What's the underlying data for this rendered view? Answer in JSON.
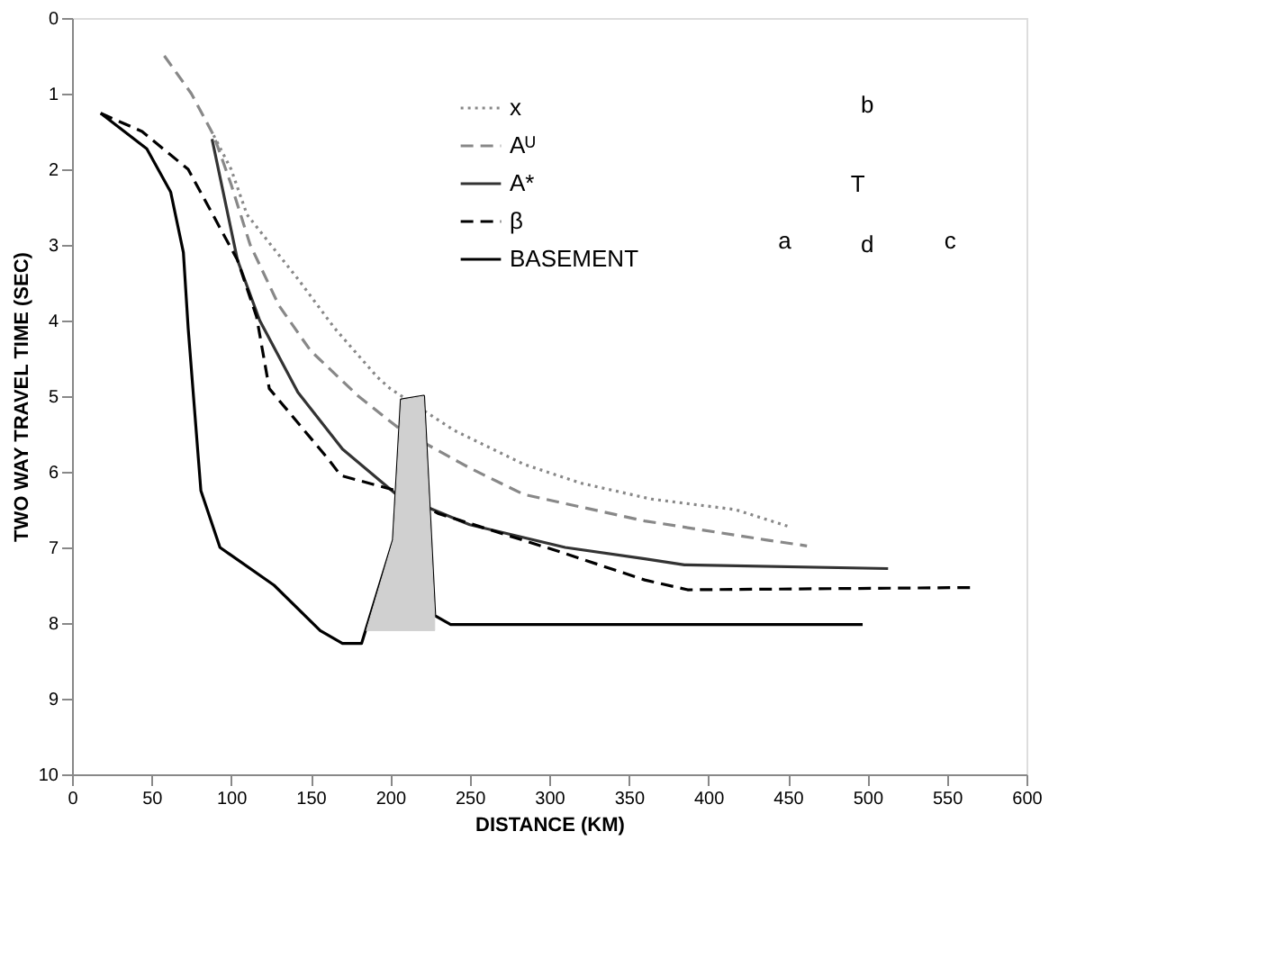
{
  "chart_data": {
    "type": "line",
    "xlabel": "DISTANCE (KM)",
    "ylabel": "TWO WAY TRAVEL TIME (SEC)",
    "xlim": [
      0,
      600
    ],
    "xticks": [
      0,
      50,
      100,
      150,
      200,
      250,
      300,
      350,
      400,
      450,
      500,
      550,
      600
    ],
    "ylim": [
      10,
      0
    ],
    "yticks": [
      0,
      1,
      2,
      3,
      4,
      5,
      6,
      7,
      8,
      9,
      10
    ],
    "grid": false,
    "legend": "top",
    "marker": "none",
    "annotations": [
      "a",
      "b",
      "c",
      "d",
      "T"
    ],
    "series": [
      {
        "name": "x",
        "color": "#888888",
        "line_style": "dotted",
        "x": [
          89,
          100,
          110,
          125,
          142,
          165,
          192,
          200,
          240,
          284,
          320,
          364,
          417,
          450
        ],
        "values": [
          1.55,
          2.0,
          2.6,
          3.0,
          3.45,
          4.1,
          4.75,
          4.9,
          5.45,
          5.9,
          6.15,
          6.36,
          6.5,
          6.72
        ]
      },
      {
        "name": "Aᵁ",
        "color": "#888888",
        "line_style": "dashed",
        "x": [
          58,
          75,
          89,
          100,
          112,
          130,
          150,
          180,
          207,
          250,
          284,
          360,
          436,
          462
        ],
        "values": [
          0.5,
          1.0,
          1.55,
          2.2,
          3.0,
          3.8,
          4.4,
          5.0,
          5.45,
          5.95,
          6.3,
          6.65,
          6.9,
          6.98
        ]
      },
      {
        "name": "A*",
        "color": "#333333",
        "line_style": "solid",
        "x": [
          88,
          95,
          104,
          118,
          142,
          170,
          204,
          250,
          310,
          360,
          385,
          513
        ],
        "values": [
          1.6,
          2.3,
          3.2,
          4.0,
          4.95,
          5.7,
          6.3,
          6.7,
          7.0,
          7.15,
          7.23,
          7.28
        ]
      },
      {
        "name": "β",
        "color": "#000000",
        "line_style": "dashed",
        "x": [
          18,
          44,
          73,
          104,
          116,
          124,
          161,
          169,
          204,
          230,
          307,
          360,
          387,
          566
        ],
        "values": [
          1.26,
          1.5,
          2.0,
          3.2,
          3.95,
          4.9,
          5.83,
          6.05,
          6.25,
          6.55,
          7.06,
          7.43,
          7.56,
          7.53
        ]
      },
      {
        "name": "BASEMENT",
        "color": "#000000",
        "line_style": "solid",
        "x": [
          18,
          47,
          62,
          70,
          73,
          81,
          93,
          127,
          156,
          170,
          182,
          202,
          207,
          221,
          228,
          238,
          497
        ],
        "values": [
          1.26,
          1.73,
          2.3,
          3.1,
          4.1,
          6.25,
          7.0,
          7.5,
          8.1,
          8.27,
          8.27,
          6.9,
          5.05,
          5.0,
          7.9,
          8.02,
          8.02
        ]
      },
      {
        "type": "area",
        "color": "#d0d0d0",
        "x": [
          185,
          202,
          207,
          221,
          228,
          228,
          185
        ],
        "values": [
          8.1,
          6.9,
          5.05,
          5.0,
          7.9,
          8.1,
          8.1
        ]
      }
    ]
  }
}
